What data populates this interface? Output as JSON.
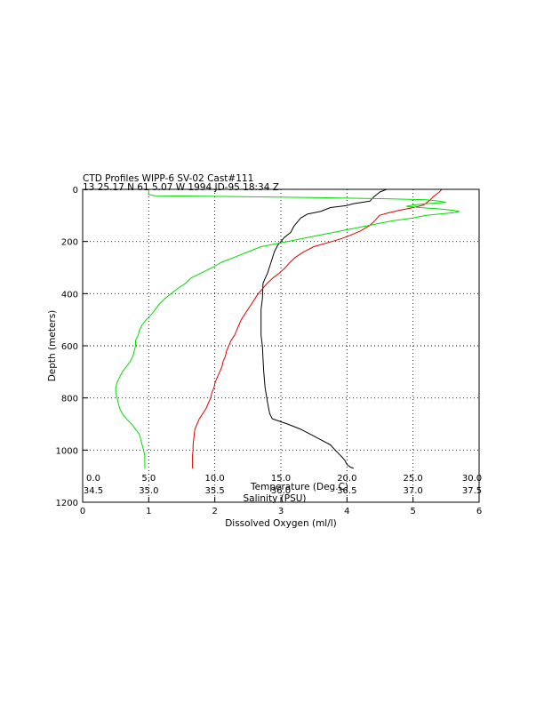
{
  "colors": {
    "oxygen": "#000000",
    "temperature": "#dd0000",
    "salinity": "#00dd00",
    "background": "#ffffff"
  },
  "chart_data": {
    "type": "line",
    "title": "CTD Profiles WIPP-6 SV-02 Cast#111",
    "subtitle": "13 25.17 N  61  5.07 W   1994  JD-95 18:34 Z",
    "ylabel": "Depth (meters)",
    "ylim": [
      1200,
      0
    ],
    "y_ticks": [
      "0",
      "200",
      "400",
      "600",
      "800",
      "1000",
      "1200"
    ],
    "grid": true,
    "axes": [
      {
        "id": "oxygen",
        "label": "Dissolved Oxygen (ml/l)",
        "range": [
          0,
          6
        ],
        "ticks": [
          "0",
          "1",
          "2",
          "3",
          "4",
          "5",
          "6"
        ]
      },
      {
        "id": "temperature",
        "label": "Temperature (Deg.C)",
        "range": [
          -5,
          30
        ],
        "ticks": [
          "0.0",
          "5.0",
          "10.0",
          "15.0",
          "20.0",
          "25.0",
          "30.0"
        ]
      },
      {
        "id": "salinity",
        "label": "Salinity (PSU)",
        "range": [
          34.5,
          37.5
        ],
        "ticks": [
          "34.5",
          "35.0",
          "35.5",
          "36.0",
          "36.5",
          "37.0",
          "37.5"
        ]
      }
    ],
    "series": [
      {
        "id": "oxygen",
        "axis": "oxygen",
        "points": [
          [
            0,
            4.6
          ],
          [
            5,
            4.55
          ],
          [
            10,
            4.5
          ],
          [
            20,
            4.45
          ],
          [
            30,
            4.4
          ],
          [
            45,
            4.35
          ],
          [
            55,
            4.1
          ],
          [
            62,
            4.0
          ],
          [
            70,
            3.75
          ],
          [
            85,
            3.6
          ],
          [
            95,
            3.4
          ],
          [
            110,
            3.3
          ],
          [
            140,
            3.2
          ],
          [
            165,
            3.15
          ],
          [
            185,
            3.05
          ],
          [
            200,
            3.0
          ],
          [
            215,
            2.95
          ],
          [
            240,
            2.9
          ],
          [
            280,
            2.85
          ],
          [
            320,
            2.8
          ],
          [
            360,
            2.73
          ],
          [
            420,
            2.72
          ],
          [
            460,
            2.7
          ],
          [
            520,
            2.7
          ],
          [
            560,
            2.7
          ],
          [
            600,
            2.72
          ],
          [
            650,
            2.73
          ],
          [
            700,
            2.74
          ],
          [
            760,
            2.76
          ],
          [
            820,
            2.8
          ],
          [
            860,
            2.83
          ],
          [
            880,
            2.87
          ],
          [
            900,
            3.1
          ],
          [
            920,
            3.3
          ],
          [
            940,
            3.45
          ],
          [
            960,
            3.6
          ],
          [
            980,
            3.75
          ],
          [
            1000,
            3.82
          ],
          [
            1020,
            3.9
          ],
          [
            1040,
            3.97
          ],
          [
            1055,
            4.0
          ],
          [
            1065,
            4.05
          ],
          [
            1070,
            4.1
          ]
        ]
      },
      {
        "id": "temperature",
        "axis": "temperature",
        "points": [
          [
            0,
            26.7
          ],
          [
            10,
            26.5
          ],
          [
            20,
            26.2
          ],
          [
            30,
            25.9
          ],
          [
            40,
            25.7
          ],
          [
            50,
            25.4
          ],
          [
            60,
            25.1
          ],
          [
            70,
            24.2
          ],
          [
            80,
            23.0
          ],
          [
            90,
            22.0
          ],
          [
            100,
            21.2
          ],
          [
            120,
            20.8
          ],
          [
            140,
            20.3
          ],
          [
            160,
            19.5
          ],
          [
            175,
            18.7
          ],
          [
            190,
            17.8
          ],
          [
            200,
            17.0
          ],
          [
            210,
            16.2
          ],
          [
            220,
            15.4
          ],
          [
            240,
            14.5
          ],
          [
            260,
            13.8
          ],
          [
            280,
            13.3
          ],
          [
            300,
            12.9
          ],
          [
            320,
            12.4
          ],
          [
            340,
            11.8
          ],
          [
            360,
            11.3
          ],
          [
            380,
            10.9
          ],
          [
            400,
            10.5
          ],
          [
            420,
            10.2
          ],
          [
            440,
            9.9
          ],
          [
            460,
            9.6
          ],
          [
            480,
            9.3
          ],
          [
            500,
            9.0
          ],
          [
            520,
            8.8
          ],
          [
            540,
            8.6
          ],
          [
            560,
            8.4
          ],
          [
            580,
            8.1
          ],
          [
            600,
            7.9
          ],
          [
            620,
            7.7
          ],
          [
            640,
            7.6
          ],
          [
            660,
            7.4
          ],
          [
            680,
            7.3
          ],
          [
            700,
            7.1
          ],
          [
            720,
            6.9
          ],
          [
            740,
            6.7
          ],
          [
            760,
            6.6
          ],
          [
            780,
            6.4
          ],
          [
            800,
            6.3
          ],
          [
            820,
            6.1
          ],
          [
            840,
            5.9
          ],
          [
            860,
            5.6
          ],
          [
            880,
            5.3
          ],
          [
            900,
            5.1
          ],
          [
            920,
            4.9
          ],
          [
            940,
            4.85
          ],
          [
            960,
            4.8
          ],
          [
            980,
            4.75
          ],
          [
            1000,
            4.75
          ],
          [
            1020,
            4.7
          ],
          [
            1040,
            4.7
          ],
          [
            1060,
            4.7
          ],
          [
            1070,
            4.7
          ]
        ]
      },
      {
        "id": "salinity",
        "axis": "salinity",
        "points": [
          [
            0,
            35.0
          ],
          [
            10,
            35.0
          ],
          [
            20,
            35.0
          ],
          [
            25,
            35.05
          ],
          [
            28,
            35.7
          ],
          [
            32,
            36.3
          ],
          [
            36,
            36.8
          ],
          [
            40,
            37.1
          ],
          [
            45,
            37.2
          ],
          [
            50,
            37.25
          ],
          [
            55,
            37.1
          ],
          [
            60,
            37.0
          ],
          [
            65,
            36.95
          ],
          [
            70,
            37.05
          ],
          [
            75,
            37.2
          ],
          [
            80,
            37.3
          ],
          [
            85,
            37.35
          ],
          [
            90,
            37.3
          ],
          [
            100,
            37.1
          ],
          [
            110,
            37.0
          ],
          [
            120,
            36.85
          ],
          [
            130,
            36.75
          ],
          [
            140,
            36.65
          ],
          [
            150,
            36.55
          ],
          [
            160,
            36.45
          ],
          [
            170,
            36.35
          ],
          [
            180,
            36.25
          ],
          [
            190,
            36.15
          ],
          [
            200,
            36.05
          ],
          [
            210,
            35.95
          ],
          [
            220,
            35.85
          ],
          [
            240,
            35.75
          ],
          [
            260,
            35.65
          ],
          [
            280,
            35.55
          ],
          [
            300,
            35.48
          ],
          [
            320,
            35.4
          ],
          [
            340,
            35.32
          ],
          [
            360,
            35.28
          ],
          [
            380,
            35.22
          ],
          [
            400,
            35.17
          ],
          [
            420,
            35.12
          ],
          [
            440,
            35.08
          ],
          [
            460,
            35.05
          ],
          [
            480,
            35.02
          ],
          [
            500,
            34.98
          ],
          [
            520,
            34.95
          ],
          [
            540,
            34.93
          ],
          [
            560,
            34.92
          ],
          [
            580,
            34.9
          ],
          [
            600,
            34.9
          ],
          [
            620,
            34.89
          ],
          [
            640,
            34.88
          ],
          [
            660,
            34.86
          ],
          [
            680,
            34.83
          ],
          [
            700,
            34.8
          ],
          [
            720,
            34.78
          ],
          [
            740,
            34.76
          ],
          [
            760,
            34.75
          ],
          [
            780,
            34.75
          ],
          [
            800,
            34.76
          ],
          [
            820,
            34.77
          ],
          [
            840,
            34.78
          ],
          [
            860,
            34.8
          ],
          [
            880,
            34.83
          ],
          [
            900,
            34.87
          ],
          [
            920,
            34.9
          ],
          [
            940,
            34.93
          ],
          [
            960,
            34.94
          ],
          [
            980,
            34.95
          ],
          [
            1000,
            34.96
          ],
          [
            1020,
            34.97
          ],
          [
            1040,
            34.97
          ],
          [
            1060,
            34.97
          ],
          [
            1070,
            34.97
          ]
        ]
      }
    ]
  }
}
